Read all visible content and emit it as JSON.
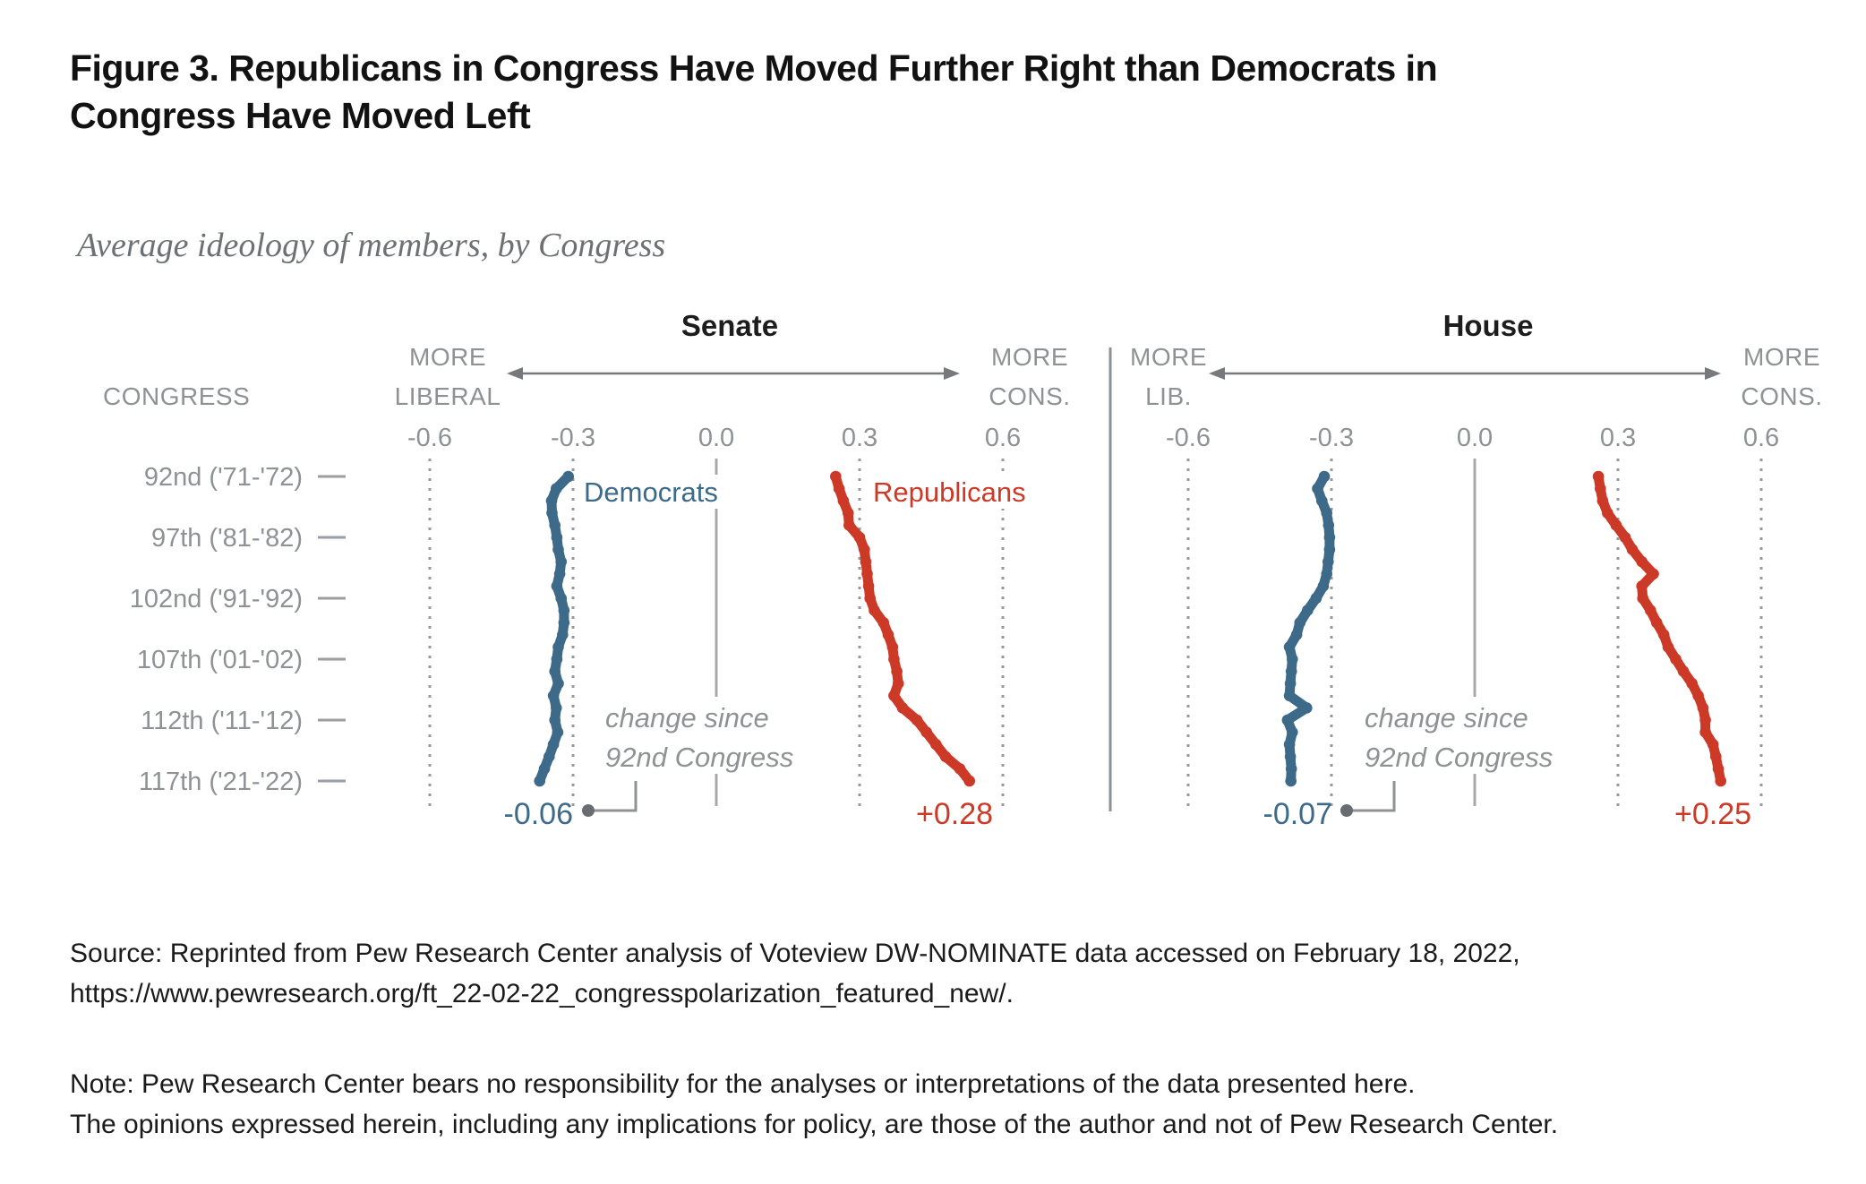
{
  "figure": {
    "title_line1": "Figure 3. Republicans in Congress Have Moved Further Right than Democrats in",
    "title_line2": "Congress Have Moved Left",
    "subtitle": "Average ideology of members, by Congress",
    "source_line1": "Source: Reprinted from Pew Research Center analysis of Voteview DW-NOMINATE data accessed on February 18, 2022,",
    "source_line2": "https://www.pewresearch.org/ft_22-02-22_congresspolarization_featured_new/.",
    "note_line1": "Note: Pew Research Center bears no responsibility for the analyses or interpretations of the data presented here.",
    "note_line2": "The opinions expressed herein, including any implications for policy, are those of the author and not of Pew Research Center."
  },
  "chart_data": {
    "type": "line",
    "orientation": "vertical time axis, ideology on horizontal axis",
    "congress_axis_label": "CONGRESS",
    "row_labels": [
      "92nd ('71-'72)",
      "97th ('81-'82)",
      "102nd ('91-'92)",
      "107th ('01-'02)",
      "112th ('11-'12)",
      "117th ('21-'22)"
    ],
    "congresses": [
      92,
      93,
      94,
      95,
      96,
      97,
      98,
      99,
      100,
      101,
      102,
      103,
      104,
      105,
      106,
      107,
      108,
      109,
      110,
      111,
      112,
      113,
      114,
      115,
      116,
      117
    ],
    "x_ticks": [
      -0.6,
      -0.3,
      0,
      0.3,
      0.6
    ],
    "x_tick_labels": [
      "-0.6",
      "-0.3",
      "0.0",
      "0.3",
      "0.6"
    ],
    "xlim": [
      -0.75,
      0.75
    ],
    "grid": "dotted vertical lines at ticks, solid line at 0.0",
    "panels": [
      {
        "title": "Senate",
        "left_label": [
          "MORE",
          "LIBERAL"
        ],
        "right_label": [
          "MORE",
          "CONS."
        ],
        "annotation": [
          "change since",
          "92nd Congress"
        ],
        "series": [
          {
            "name": "Democrats",
            "color": "#3d6a88",
            "change_label": "-0.06",
            "values": [
              -0.31,
              -0.335,
              -0.345,
              -0.344,
              -0.338,
              -0.334,
              -0.331,
              -0.325,
              -0.328,
              -0.334,
              -0.325,
              -0.319,
              -0.319,
              -0.322,
              -0.331,
              -0.334,
              -0.338,
              -0.331,
              -0.341,
              -0.335,
              -0.338,
              -0.332,
              -0.341,
              -0.35,
              -0.36,
              -0.37
            ]
          },
          {
            "name": "Republicans",
            "color": "#cc3a27",
            "change_label": "+0.28",
            "values": [
              0.25,
              0.257,
              0.266,
              0.276,
              0.278,
              0.3,
              0.31,
              0.313,
              0.316,
              0.319,
              0.322,
              0.331,
              0.35,
              0.36,
              0.369,
              0.372,
              0.378,
              0.381,
              0.372,
              0.39,
              0.42,
              0.44,
              0.46,
              0.48,
              0.51,
              0.53
            ]
          }
        ]
      },
      {
        "title": "House",
        "left_label": [
          "MORE",
          "LIB."
        ],
        "right_label": [
          "MORE",
          "CONS."
        ],
        "annotation": [
          "change since",
          "92nd Congress"
        ],
        "series": [
          {
            "name": "Democrats",
            "color": "#3d6a88",
            "change_label": "-0.07",
            "values": [
              -0.315,
              -0.329,
              -0.32,
              -0.31,
              -0.306,
              -0.304,
              -0.304,
              -0.307,
              -0.31,
              -0.317,
              -0.332,
              -0.35,
              -0.366,
              -0.373,
              -0.388,
              -0.382,
              -0.384,
              -0.386,
              -0.388,
              -0.352,
              -0.392,
              -0.382,
              -0.388,
              -0.386,
              -0.384,
              -0.385
            ]
          },
          {
            "name": "Republicans",
            "color": "#cc3a27",
            "change_label": "+0.25",
            "values": [
              0.259,
              0.263,
              0.268,
              0.278,
              0.296,
              0.315,
              0.33,
              0.35,
              0.374,
              0.35,
              0.352,
              0.368,
              0.381,
              0.396,
              0.405,
              0.421,
              0.437,
              0.455,
              0.468,
              0.478,
              0.483,
              0.483,
              0.499,
              0.505,
              0.51,
              0.515
            ]
          }
        ]
      }
    ]
  },
  "colors": {
    "democrat_blue": "#3d6a88",
    "republican_red": "#cc3a27",
    "axis_gray": "#8f9294",
    "title_black": "#121212"
  }
}
